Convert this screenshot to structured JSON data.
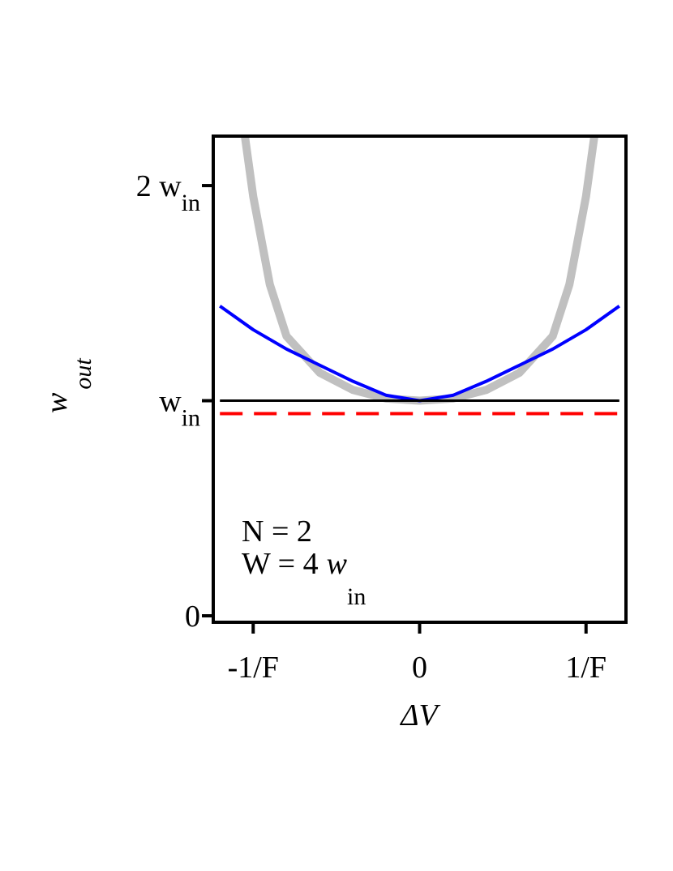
{
  "chart_data": {
    "type": "line",
    "xlabel": "ΔV",
    "ylabel": {
      "text": "w",
      "subscript": "out"
    },
    "xlim": [
      -1.24,
      1.24
    ],
    "ylim": [
      -0.03,
      2.23
    ],
    "xticks": [
      {
        "value": -1,
        "label": "-1/F"
      },
      0,
      {
        "value": 1,
        "label": "1/F"
      }
    ],
    "yticks": [
      0,
      {
        "value": 1,
        "label": "w",
        "subscript": "in"
      },
      {
        "value": 2,
        "label": "2 w",
        "subscript": "in"
      }
    ],
    "grid": false,
    "annotations": [
      {
        "text": "N = 2"
      },
      {
        "text": "W = 4",
        "italic": "w",
        "subscript": "in"
      }
    ],
    "series": [
      {
        "color": "#c0c0c0",
        "width": 10,
        "dash": false,
        "x": [
          -1.05,
          -1.0,
          -0.9,
          -0.8,
          -0.6,
          -0.4,
          -0.2,
          0,
          0.2,
          0.4,
          0.6,
          0.8,
          0.9,
          1.0,
          1.05
        ],
        "values": [
          2.23,
          1.95,
          1.54,
          1.3,
          1.13,
          1.05,
          1.01,
          1,
          1.01,
          1.05,
          1.13,
          1.3,
          1.54,
          1.95,
          2.23
        ]
      },
      {
        "color": "#0000ff",
        "width": 4,
        "dash": false,
        "x": [
          -1.2,
          -1.0,
          -0.8,
          -0.6,
          -0.4,
          -0.2,
          0,
          0.2,
          0.4,
          0.6,
          0.8,
          1.0,
          1.2
        ],
        "values": [
          1.44,
          1.33,
          1.24,
          1.165,
          1.09,
          1.025,
          1,
          1.025,
          1.09,
          1.165,
          1.24,
          1.33,
          1.44
        ]
      },
      {
        "color": "#000000",
        "width": 3,
        "dash": false,
        "x": [
          -1.2,
          1.2
        ],
        "values": [
          1,
          1
        ]
      },
      {
        "color": "#ff0000",
        "width": 4,
        "dash": true,
        "x": [
          -1.2,
          1.2
        ],
        "values": [
          0.94,
          0.94
        ]
      }
    ]
  }
}
